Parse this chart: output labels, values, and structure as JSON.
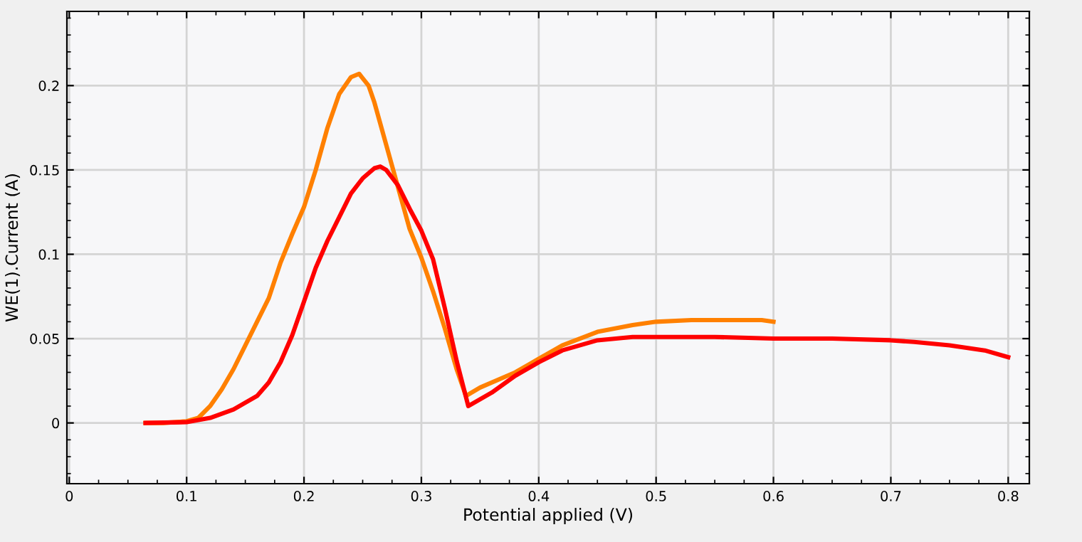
{
  "chart_data": {
    "type": "line",
    "xlabel": "Potential applied (V)",
    "ylabel": "WE(1).Current (A)",
    "xlim": [
      -0.002,
      0.818
    ],
    "xticks": [
      0,
      0.1,
      0.2,
      0.3,
      0.4,
      0.5,
      0.6,
      0.7,
      0.8
    ],
    "ylim": [
      -0.036,
      0.244
    ],
    "yticks": [
      0,
      0.05,
      0.1,
      0.15,
      0.2
    ],
    "grid": true,
    "legend": false,
    "line_style": "solid",
    "series": [
      {
        "color": "#ff8000",
        "x": [
          0.065,
          0.08,
          0.1,
          0.11,
          0.12,
          0.13,
          0.14,
          0.15,
          0.16,
          0.17,
          0.18,
          0.19,
          0.2,
          0.21,
          0.22,
          0.23,
          0.24,
          0.247,
          0.255,
          0.26,
          0.27,
          0.28,
          0.29,
          0.3,
          0.31,
          0.32,
          0.33,
          0.338,
          0.35,
          0.38,
          0.4,
          0.42,
          0.45,
          0.48,
          0.5,
          0.53,
          0.56,
          0.59,
          0.6
        ],
        "values": [
          0,
          0,
          0.001,
          0.003,
          0.01,
          0.02,
          0.032,
          0.046,
          0.06,
          0.074,
          0.095,
          0.112,
          0.128,
          0.15,
          0.175,
          0.195,
          0.205,
          0.207,
          0.2,
          0.19,
          0.165,
          0.14,
          0.115,
          0.098,
          0.078,
          0.056,
          0.032,
          0.016,
          0.021,
          0.03,
          0.038,
          0.046,
          0.054,
          0.058,
          0.06,
          0.061,
          0.061,
          0.061,
          0.06
        ]
      },
      {
        "color": "#ff0000",
        "x": [
          0.065,
          0.1,
          0.12,
          0.14,
          0.16,
          0.17,
          0.18,
          0.19,
          0.2,
          0.21,
          0.22,
          0.23,
          0.24,
          0.25,
          0.26,
          0.265,
          0.27,
          0.28,
          0.29,
          0.3,
          0.31,
          0.32,
          0.33,
          0.34,
          0.36,
          0.38,
          0.4,
          0.42,
          0.45,
          0.48,
          0.5,
          0.55,
          0.6,
          0.65,
          0.7,
          0.72,
          0.75,
          0.78,
          0.8
        ],
        "values": [
          0,
          0.0005,
          0.003,
          0.008,
          0.016,
          0.024,
          0.036,
          0.052,
          0.072,
          0.092,
          0.108,
          0.122,
          0.136,
          0.145,
          0.151,
          0.152,
          0.15,
          0.141,
          0.127,
          0.114,
          0.097,
          0.068,
          0.037,
          0.01,
          0.018,
          0.028,
          0.036,
          0.043,
          0.049,
          0.051,
          0.051,
          0.051,
          0.05,
          0.05,
          0.049,
          0.048,
          0.046,
          0.043,
          0.039
        ]
      }
    ]
  }
}
